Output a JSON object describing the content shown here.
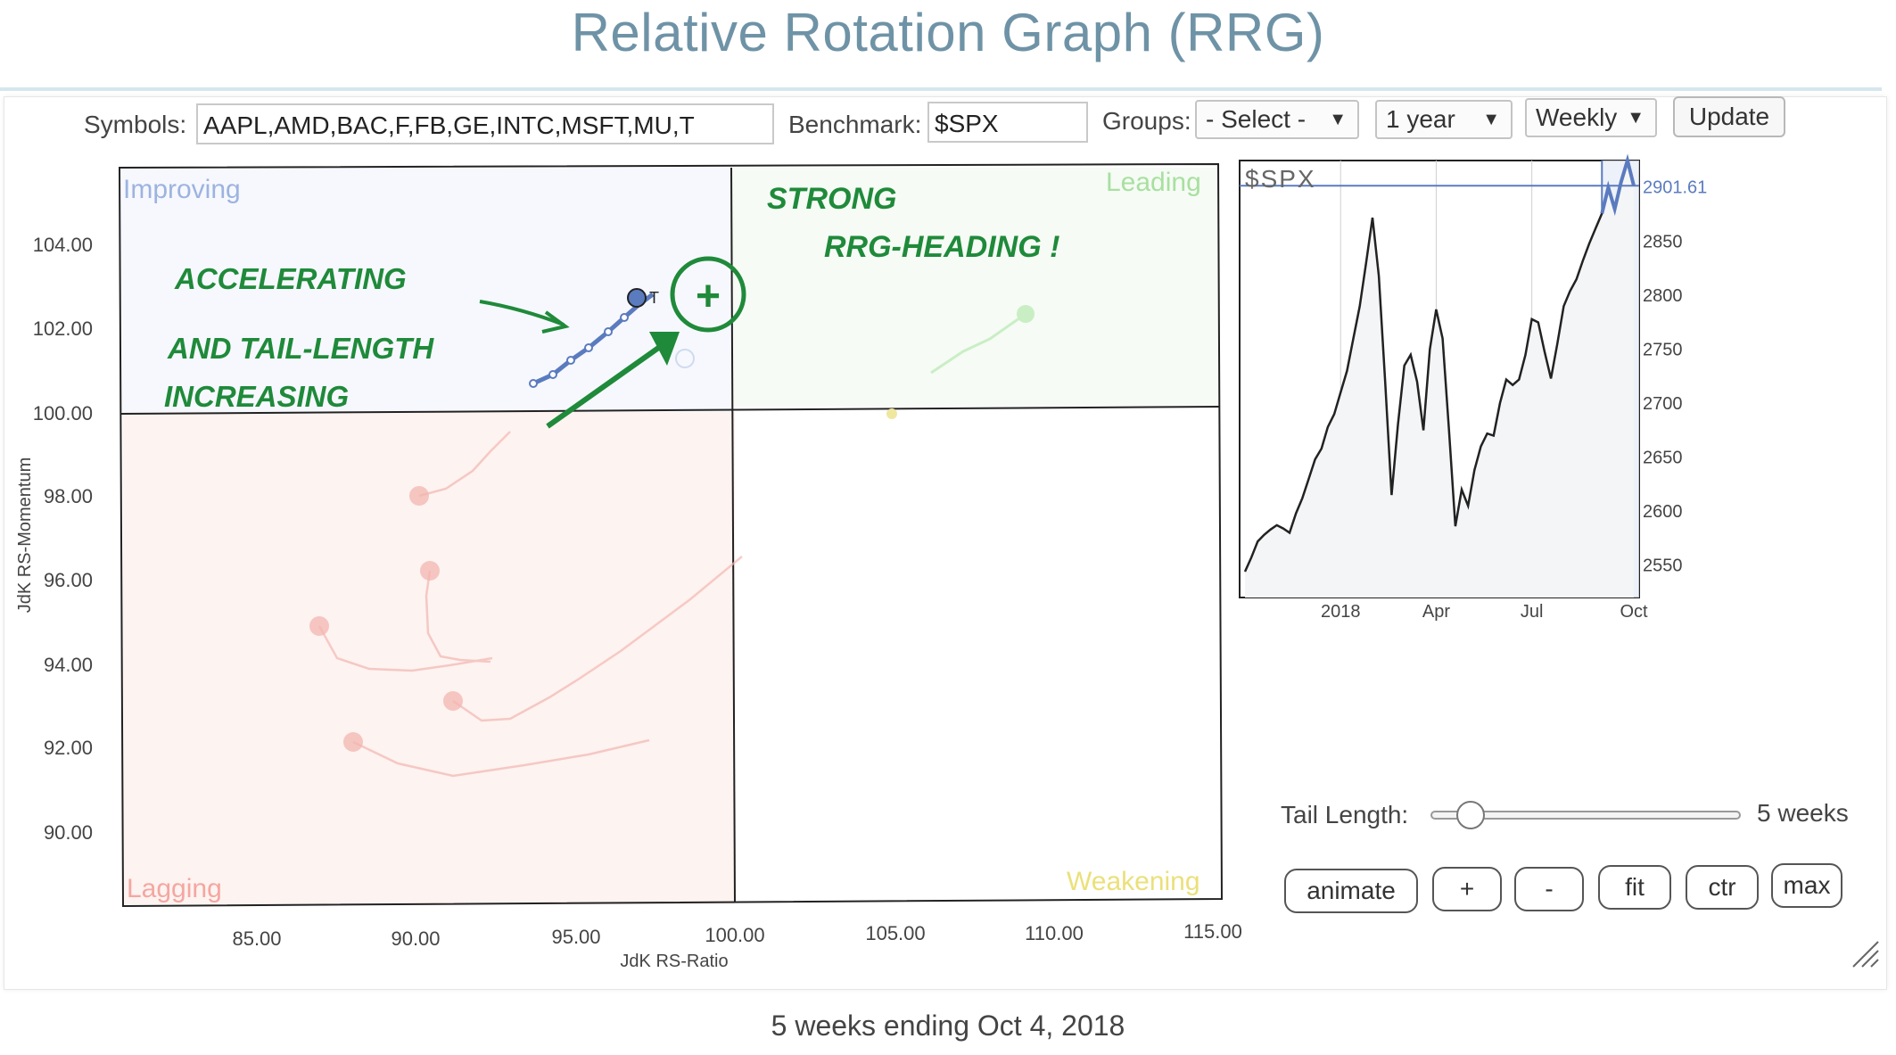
{
  "page": {
    "title": "Relative Rotation Graph (RRG)",
    "footer": "5 weeks ending Oct 4, 2018"
  },
  "controls": {
    "symbols_label": "Symbols:",
    "symbols_value": "AAPL,AMD,BAC,F,FB,GE,INTC,MSFT,MU,T",
    "benchmark_label": "Benchmark:",
    "benchmark_value": "$SPX",
    "groups_label": "Groups:",
    "groups_value": "- Select -",
    "period_value": "1 year",
    "frequency_value": "Weekly",
    "update_label": "Update"
  },
  "rrg": {
    "quadrants": {
      "improving": "Improving",
      "leading": "Leading",
      "lagging": "Lagging",
      "weakening": "Weakening"
    },
    "y_axis_title": "JdK RS-Momentum",
    "x_axis_title": "JdK RS-Ratio",
    "x_ticks": [
      "85.00",
      "90.00",
      "95.00",
      "100.00",
      "105.00",
      "110.00",
      "115.00"
    ],
    "y_ticks": [
      "104.00",
      "102.00",
      "100.00",
      "98.00",
      "96.00",
      "94.00",
      "92.00",
      "90.00"
    ],
    "highlight_label": "T",
    "colors": {
      "improving": "#5b7bbf",
      "leading": "#7fd07f",
      "lagging": "#f07a7a",
      "weakening": "#e6d84a",
      "annotation": "#1f8a3a"
    }
  },
  "annotations": {
    "left_line1": "ACCELERATING",
    "left_line2": "AND TAIL-LENGTH",
    "left_line3": "INCREASING",
    "right_line1": "STRONG",
    "right_line2": "RRG-HEADING !",
    "plus_mark": "+"
  },
  "chart_data": {
    "type": "line",
    "title": "$SPX",
    "x_tick_labels": [
      "2018",
      "Apr",
      "Jul",
      "Oct"
    ],
    "y_ticks": [
      "2550",
      "2600",
      "2650",
      "2700",
      "2750",
      "2800",
      "2850"
    ],
    "last_value_label": "2901.61",
    "ylim": [
      2520,
      2925
    ],
    "series": [
      {
        "values": [
          2544,
          2557,
          2572,
          2578,
          2583,
          2587,
          2584,
          2580,
          2598,
          2612,
          2630,
          2648,
          2658,
          2678,
          2690,
          2710,
          2730,
          2760,
          2790,
          2830,
          2872,
          2818,
          2720,
          2615,
          2680,
          2735,
          2745,
          2720,
          2675,
          2750,
          2787,
          2760,
          2676,
          2586,
          2620,
          2605,
          2638,
          2660,
          2672,
          2670,
          2700,
          2722,
          2717,
          2722,
          2745,
          2778,
          2775,
          2748,
          2723,
          2755,
          2790,
          2804,
          2815,
          2832,
          2848,
          2862,
          2876,
          2900,
          2880,
          2905,
          2925,
          2901.61
        ]
      }
    ]
  },
  "side_controls": {
    "tail_label": "Tail Length:",
    "tail_value": "5 weeks",
    "tail_fraction": 0.13,
    "buttons": {
      "animate": "animate",
      "plus": "+",
      "minus": "-",
      "fit": "fit",
      "ctr": "ctr",
      "max": "max"
    }
  }
}
